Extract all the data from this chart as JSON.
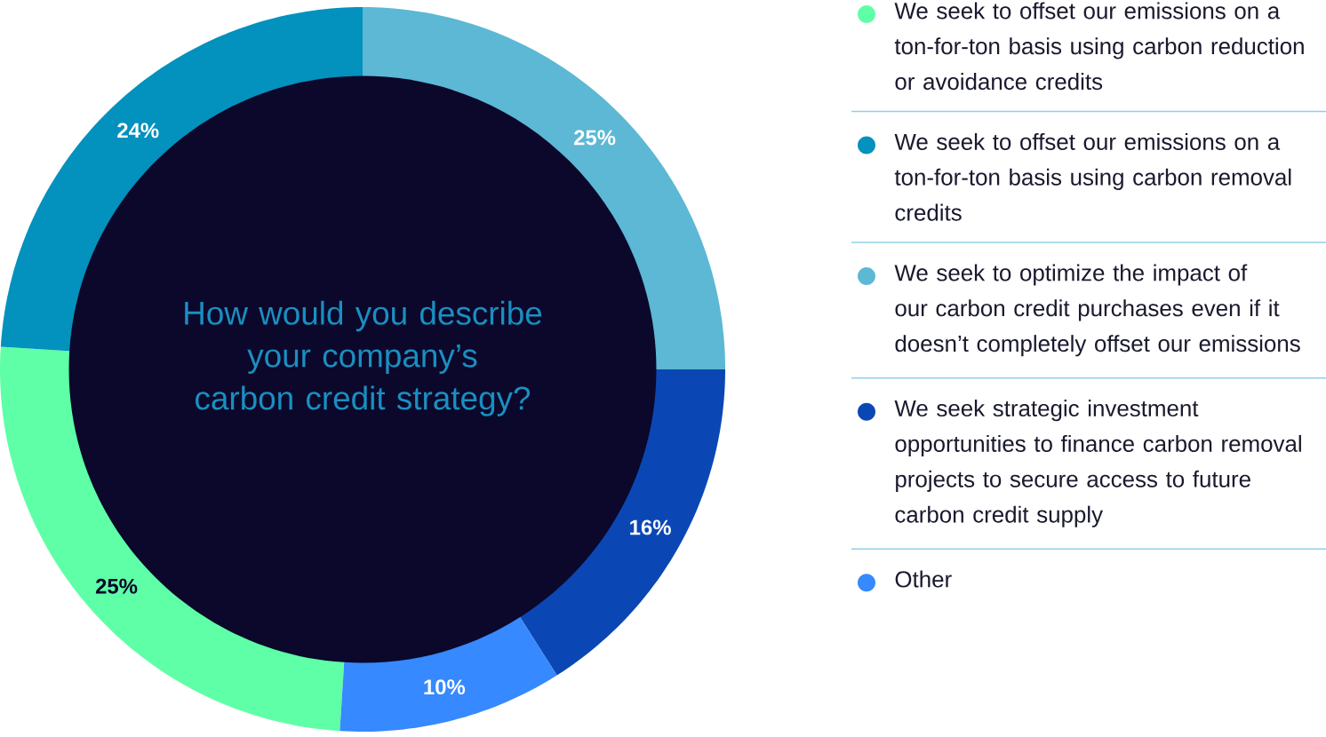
{
  "chart_data": {
    "type": "donut",
    "title": "How would you describe your company’s carbon credit strategy?",
    "categories": [
      "We seek to offset our emissions on a ton-for-ton basis using carbon reduction or avoidance credits",
      "We seek to offset our emissions on a ton-for-ton basis using carbon removal credits",
      "We seek to optimize the impact of our carbon credit purchases even if it doesn’t completely offset our emissions",
      "We seek strategic investment opportunities to finance carbon removal projects to secure access to future carbon credit supply",
      "Other"
    ],
    "values": [
      25,
      24,
      25,
      16,
      10
    ],
    "colors": [
      "#5effa6",
      "#0391bd",
      "#5cb8d4",
      "#0b47b4",
      "#3689fe"
    ],
    "value_labels": [
      "25%",
      "24%",
      "25%",
      "16%",
      "10%"
    ],
    "legend": "right"
  }
}
